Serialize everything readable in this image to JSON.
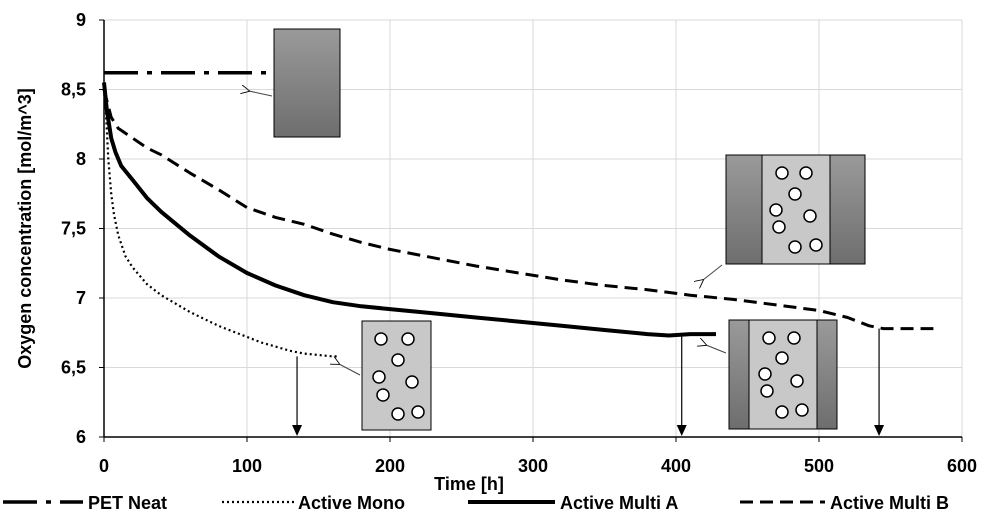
{
  "chart_data": {
    "type": "line",
    "xlabel": "Time [h]",
    "ylabel": "Oxygen concentration [mol/m^3]",
    "xlim": [
      0,
      600
    ],
    "ylim": [
      6,
      9
    ],
    "x_ticks": [
      0,
      100,
      200,
      300,
      400,
      500,
      600
    ],
    "x_tick_labels": [
      "0",
      "100",
      "200",
      "300",
      "400",
      "500",
      "600"
    ],
    "y_ticks": [
      6,
      6.5,
      7,
      7.5,
      8,
      8.5,
      9
    ],
    "y_tick_labels": [
      "6",
      "6,5",
      "7",
      "7,5",
      "8",
      "8,5",
      "9"
    ],
    "grid": true,
    "legend_position": "bottom",
    "series": [
      {
        "name": "PET Neat",
        "style": "dashdot",
        "x": [
          0,
          117
        ],
        "y": [
          8.62,
          8.62
        ]
      },
      {
        "name": "Active Mono",
        "style": "dotted",
        "x": [
          0,
          1,
          2,
          3,
          5,
          7,
          10,
          15,
          20,
          30,
          40,
          50,
          60,
          70,
          80,
          90,
          100,
          110,
          120,
          130,
          140,
          150,
          160,
          164
        ],
        "y": [
          8.55,
          8.4,
          8.2,
          8.0,
          7.75,
          7.6,
          7.45,
          7.3,
          7.22,
          7.1,
          7.02,
          6.96,
          6.9,
          6.85,
          6.8,
          6.76,
          6.72,
          6.68,
          6.65,
          6.62,
          6.6,
          6.59,
          6.58,
          6.58
        ]
      },
      {
        "name": "Active Multi A",
        "style": "solid",
        "x": [
          0,
          2,
          5,
          8,
          12,
          20,
          30,
          40,
          60,
          80,
          100,
          120,
          140,
          160,
          180,
          200,
          230,
          260,
          290,
          320,
          350,
          380,
          395,
          410,
          428
        ],
        "y": [
          8.55,
          8.35,
          8.15,
          8.05,
          7.95,
          7.85,
          7.72,
          7.62,
          7.45,
          7.3,
          7.18,
          7.09,
          7.02,
          6.97,
          6.94,
          6.92,
          6.89,
          6.86,
          6.83,
          6.8,
          6.77,
          6.74,
          6.73,
          6.74,
          6.74
        ]
      },
      {
        "name": "Active Multi B",
        "style": "dashed",
        "x": [
          0,
          5,
          10,
          20,
          30,
          40,
          60,
          80,
          100,
          120,
          140,
          160,
          180,
          200,
          230,
          260,
          290,
          320,
          350,
          380,
          410,
          440,
          470,
          500,
          520,
          535,
          545,
          560,
          580
        ],
        "y": [
          8.5,
          8.3,
          8.22,
          8.15,
          8.08,
          8.03,
          7.9,
          7.78,
          7.65,
          7.58,
          7.53,
          7.46,
          7.4,
          7.35,
          7.29,
          7.23,
          7.18,
          7.13,
          7.09,
          7.06,
          7.02,
          6.99,
          6.95,
          6.91,
          6.86,
          6.8,
          6.78,
          6.78,
          6.78
        ]
      }
    ],
    "annotation_arrows_down_at_x": [
      135,
      404,
      542
    ]
  }
}
